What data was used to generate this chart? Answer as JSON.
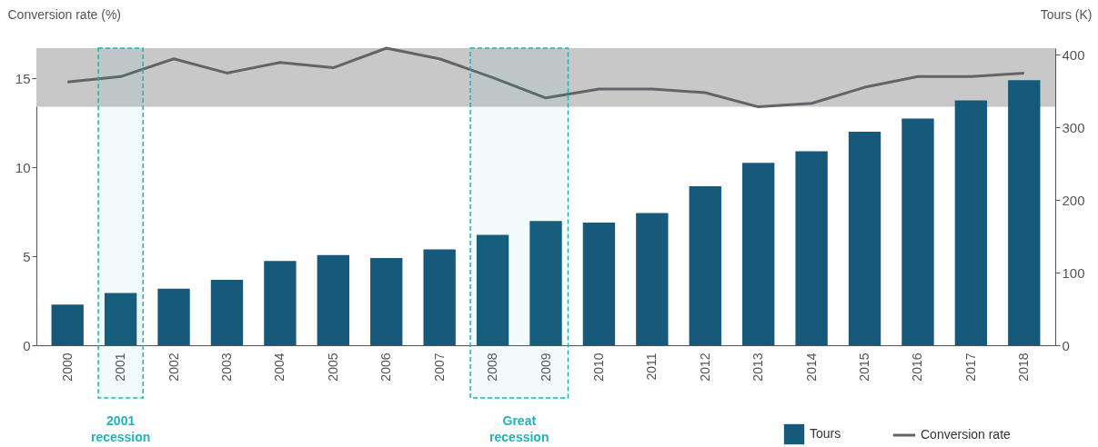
{
  "chart_data": {
    "type": "bar",
    "ylabel": "Conversion rate (%)",
    "y2label": "Tours (K)",
    "categories": [
      "2000",
      "2001",
      "2002",
      "2003",
      "2004",
      "2005",
      "2006",
      "2007",
      "2008",
      "2009",
      "2010",
      "2011",
      "2012",
      "2013",
      "2014",
      "2015",
      "2016",
      "2017",
      "2018"
    ],
    "series": [
      {
        "name": "Tours",
        "axis": "y2",
        "color": "#17597a",
        "values": [
          56,
          72,
          78,
          90,
          116,
          124,
          120,
          132,
          152,
          171,
          169,
          182,
          219,
          251,
          267,
          294,
          312,
          337,
          365
        ]
      },
      {
        "name": "Conversion rate",
        "type": "line",
        "color": "#626467",
        "values": [
          14.8,
          15.1,
          16.1,
          15.3,
          15.9,
          15.6,
          16.7,
          16.1,
          15.05,
          13.9,
          14.4,
          14.4,
          14.2,
          13.4,
          13.6,
          14.5,
          15.1,
          15.1,
          15.3
        ]
      }
    ],
    "ylim": [
      0,
      16.7
    ],
    "yticks": [
      0,
      5,
      10,
      15
    ],
    "y2lim": [
      0,
      409
    ],
    "y2ticks": [
      0,
      100,
      200,
      300,
      400
    ],
    "bands": [
      {
        "axis": "y",
        "from": 13.4,
        "to": 16.7,
        "color": "#c8c8c8"
      },
      {
        "axis": "x",
        "from": "2001",
        "to": "2001",
        "label": "2001 recession",
        "color": "#1fb3b8"
      },
      {
        "axis": "x",
        "from": "2008",
        "to": "2009",
        "label": "Great recession",
        "color": "#1fb3b8"
      }
    ],
    "grid": false,
    "legend": "bottom right"
  }
}
